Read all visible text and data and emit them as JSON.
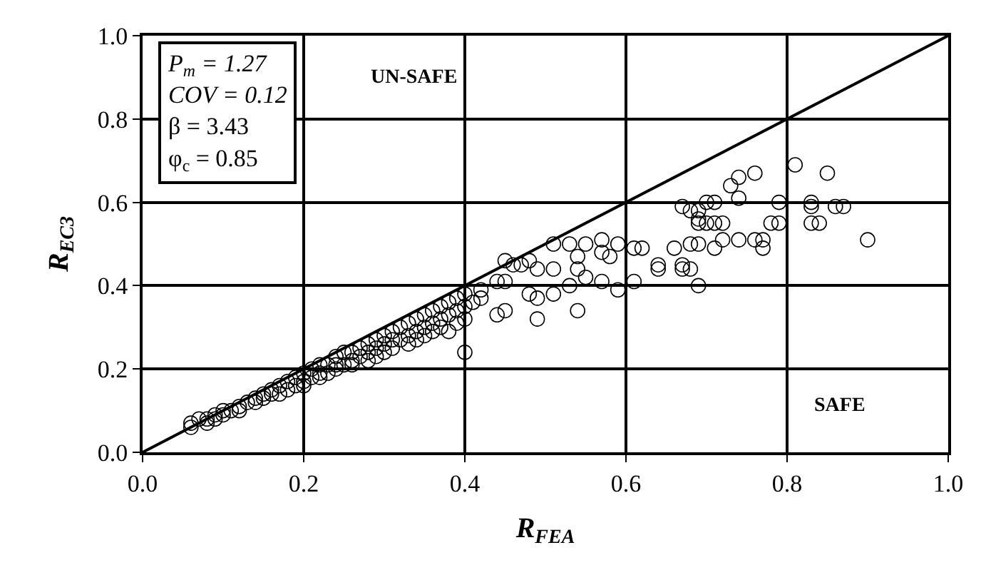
{
  "chart_data": {
    "type": "scatter",
    "xlabel": "R$_{FEA}$",
    "ylabel": "R$_{EC3}$",
    "xlim": [
      0,
      1
    ],
    "ylim": [
      0,
      1
    ],
    "xticks": [
      {
        "value": 0,
        "label": "0.0"
      },
      {
        "value": 0.2,
        "label": "0.2"
      },
      {
        "value": 0.4,
        "label": "0.4"
      },
      {
        "value": 0.6,
        "label": "0.6"
      },
      {
        "value": 0.8,
        "label": "0.8"
      },
      {
        "value": 1,
        "label": "1.0"
      }
    ],
    "yticks": [
      {
        "value": 0,
        "label": "0.0"
      },
      {
        "value": 0.2,
        "label": "0.2"
      },
      {
        "value": 0.4,
        "label": "0.4"
      },
      {
        "value": 0.6,
        "label": "0.6"
      },
      {
        "value": 0.8,
        "label": "0.8"
      },
      {
        "value": 1,
        "label": "1.0"
      }
    ],
    "grid": true,
    "marker": "circle",
    "annotations": [
      "P$_{m}$ = 1.27",
      "COV = 0.12",
      "β = 3.43",
      "φ$_{c}$ = 0.85",
      "UN-SAFE",
      "SAFE"
    ],
    "series": [
      {
        "color": "#000000",
        "x": [
          0.06,
          0.06,
          0.07,
          0.08,
          0.08,
          0.09,
          0.09,
          0.1,
          0.1,
          0.11,
          0.12,
          0.12,
          0.13,
          0.14,
          0.14,
          0.15,
          0.15,
          0.16,
          0.16,
          0.17,
          0.17,
          0.18,
          0.18,
          0.19,
          0.19,
          0.2,
          0.2,
          0.2,
          0.21,
          0.21,
          0.22,
          0.22,
          0.22,
          0.23,
          0.23,
          0.24,
          0.24,
          0.24,
          0.25,
          0.25,
          0.26,
          0.26,
          0.26,
          0.27,
          0.27,
          0.28,
          0.28,
          0.28,
          0.29,
          0.29,
          0.29,
          0.3,
          0.3,
          0.3,
          0.31,
          0.31,
          0.31,
          0.32,
          0.32,
          0.33,
          0.33,
          0.33,
          0.34,
          0.34,
          0.34,
          0.35,
          0.35,
          0.35,
          0.36,
          0.36,
          0.36,
          0.37,
          0.37,
          0.37,
          0.38,
          0.38,
          0.38,
          0.39,
          0.39,
          0.39,
          0.4,
          0.4,
          0.4,
          0.4,
          0.41,
          0.42,
          0.42,
          0.44,
          0.44,
          0.45,
          0.45,
          0.45,
          0.46,
          0.47,
          0.48,
          0.48,
          0.49,
          0.49,
          0.49,
          0.51,
          0.51,
          0.51,
          0.53,
          0.53,
          0.54,
          0.54,
          0.54,
          0.55,
          0.55,
          0.57,
          0.57,
          0.57,
          0.58,
          0.59,
          0.59,
          0.61,
          0.61,
          0.62,
          0.64,
          0.64,
          0.66,
          0.67,
          0.67,
          0.67,
          0.68,
          0.68,
          0.68,
          0.69,
          0.69,
          0.69,
          0.69,
          0.69,
          0.7,
          0.7,
          0.71,
          0.71,
          0.71,
          0.72,
          0.72,
          0.73,
          0.74,
          0.74,
          0.74,
          0.76,
          0.76,
          0.77,
          0.77,
          0.78,
          0.79,
          0.79,
          0.81,
          0.83,
          0.83,
          0.83,
          0.84,
          0.85,
          0.86,
          0.87,
          0.9
        ],
        "values": [
          0.07,
          0.06,
          0.08,
          0.07,
          0.08,
          0.09,
          0.08,
          0.09,
          0.1,
          0.1,
          0.11,
          0.1,
          0.12,
          0.13,
          0.12,
          0.14,
          0.13,
          0.15,
          0.14,
          0.16,
          0.14,
          0.17,
          0.15,
          0.18,
          0.16,
          0.19,
          0.17,
          0.16,
          0.2,
          0.18,
          0.21,
          0.19,
          0.18,
          0.21,
          0.19,
          0.23,
          0.21,
          0.2,
          0.24,
          0.21,
          0.24,
          0.22,
          0.21,
          0.25,
          0.23,
          0.26,
          0.24,
          0.22,
          0.27,
          0.25,
          0.23,
          0.28,
          0.26,
          0.24,
          0.29,
          0.27,
          0.25,
          0.3,
          0.27,
          0.31,
          0.28,
          0.26,
          0.32,
          0.29,
          0.27,
          0.33,
          0.3,
          0.28,
          0.34,
          0.31,
          0.29,
          0.35,
          0.32,
          0.3,
          0.36,
          0.33,
          0.29,
          0.37,
          0.34,
          0.31,
          0.38,
          0.35,
          0.32,
          0.24,
          0.36,
          0.39,
          0.37,
          0.41,
          0.33,
          0.46,
          0.41,
          0.34,
          0.45,
          0.45,
          0.46,
          0.38,
          0.44,
          0.32,
          0.37,
          0.5,
          0.38,
          0.44,
          0.5,
          0.4,
          0.44,
          0.47,
          0.34,
          0.5,
          0.42,
          0.48,
          0.51,
          0.41,
          0.47,
          0.5,
          0.39,
          0.49,
          0.41,
          0.49,
          0.44,
          0.45,
          0.49,
          0.59,
          0.45,
          0.44,
          0.58,
          0.5,
          0.44,
          0.56,
          0.55,
          0.4,
          0.5,
          0.58,
          0.55,
          0.6,
          0.55,
          0.49,
          0.6,
          0.55,
          0.51,
          0.64,
          0.61,
          0.51,
          0.66,
          0.51,
          0.67,
          0.51,
          0.49,
          0.55,
          0.6,
          0.55,
          0.69,
          0.6,
          0.59,
          0.55,
          0.55,
          0.67,
          0.59,
          0.59,
          0.51
        ]
      },
      {
        "type": "line",
        "color": "#000000",
        "x": [
          0,
          1
        ],
        "values": [
          0,
          1
        ],
        "marker": "none"
      }
    ]
  }
}
